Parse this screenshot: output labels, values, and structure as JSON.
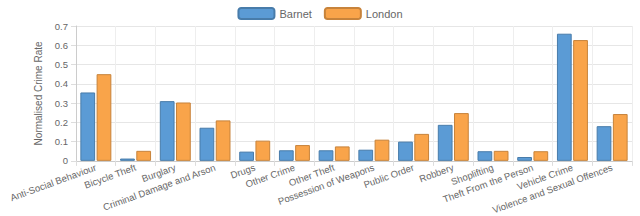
{
  "chart_data": {
    "type": "bar",
    "categories": [
      "Anti-Social Behaviour",
      "Bicycle Theft",
      "Burglary",
      "Criminal Damage and Arson",
      "Drugs",
      "Other Crime",
      "Other Theft",
      "Possession of Weapons",
      "Public Order",
      "Robbery",
      "Shoplifting",
      "Theft From the Person",
      "Vehicle Crime",
      "Violence and Sexual Offences"
    ],
    "series": [
      {
        "name": "Barnet",
        "color": "#5b9bd5",
        "values": [
          0.355,
          0.012,
          0.31,
          0.172,
          0.048,
          0.055,
          0.055,
          0.058,
          0.1,
          0.187,
          0.05,
          0.02,
          0.66,
          0.18
        ]
      },
      {
        "name": "London",
        "color": "#f9a44a",
        "values": [
          0.45,
          0.052,
          0.303,
          0.21,
          0.105,
          0.082,
          0.075,
          0.11,
          0.14,
          0.248,
          0.052,
          0.05,
          0.627,
          0.243
        ]
      }
    ],
    "y_label": "Normalised Crime Rate",
    "ylim": [
      0,
      0.7
    ],
    "yticks": [
      0,
      0.1,
      0.2,
      0.3,
      0.4,
      0.5,
      0.6,
      0.7
    ],
    "grid": true,
    "legend": "top"
  }
}
